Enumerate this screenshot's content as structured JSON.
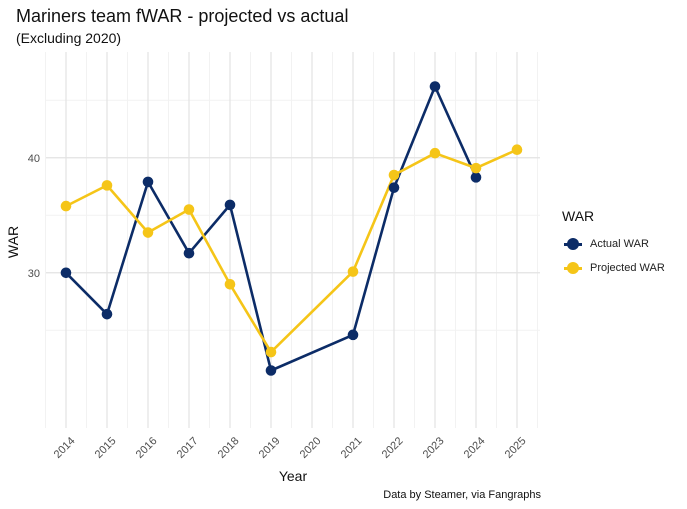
{
  "chart_data": {
    "type": "line",
    "title": "Mariners team fWAR - projected vs actual",
    "subtitle": "(Excluding 2020)",
    "xlabel": "Year",
    "ylabel": "WAR",
    "caption": "Data by Steamer, via Fangraphs",
    "categories": [
      "2014",
      "2015",
      "2016",
      "2017",
      "2018",
      "2019",
      "2020",
      "2021",
      "2022",
      "2023",
      "2024",
      "2025"
    ],
    "yticks": [
      30,
      40
    ],
    "ylim": [
      16.5,
      49.2
    ],
    "grid": true,
    "legend": {
      "title": "WAR",
      "position": "right"
    },
    "series": [
      {
        "name": "Actual WAR",
        "color": "#0c2c67",
        "values": [
          30.0,
          26.4,
          37.9,
          31.7,
          35.9,
          21.5,
          null,
          24.6,
          37.4,
          46.2,
          38.3,
          null
        ]
      },
      {
        "name": "Projected WAR",
        "color": "#f5c518",
        "values": [
          35.8,
          37.6,
          33.5,
          35.5,
          29.0,
          23.1,
          null,
          30.1,
          38.5,
          40.4,
          39.1,
          40.7
        ]
      }
    ]
  }
}
